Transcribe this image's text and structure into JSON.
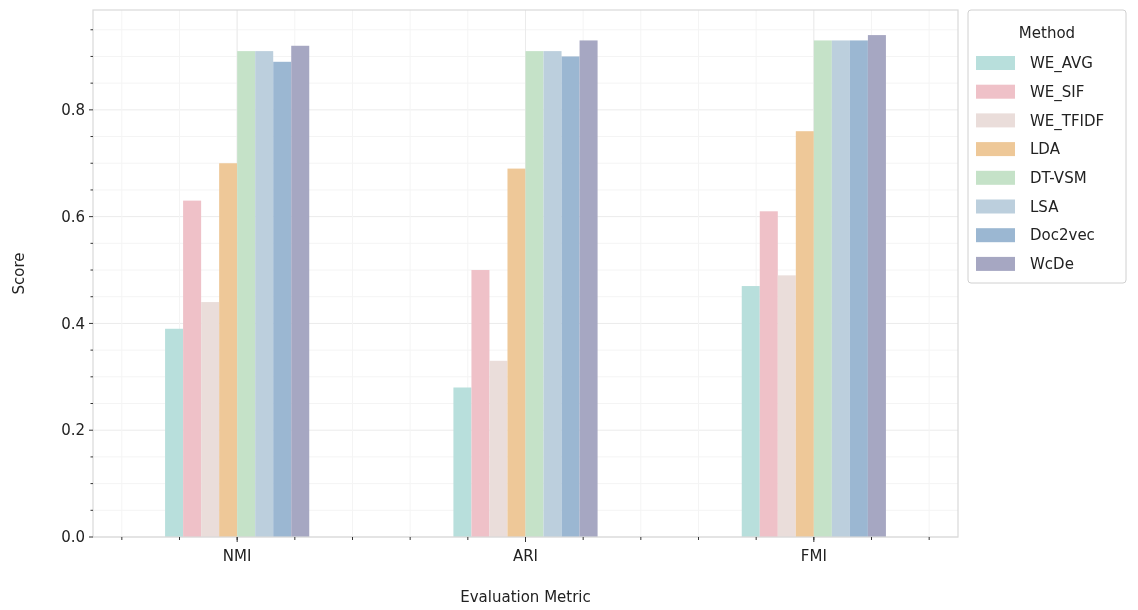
{
  "chart_data": {
    "type": "bar",
    "xlabel": "Evaluation Metric",
    "ylabel": "Score",
    "legend_title": "Method",
    "categories": [
      "NMI",
      "ARI",
      "FMI"
    ],
    "series": [
      {
        "name": "WE_AVG",
        "color": "#b8dfdc",
        "values": [
          0.39,
          0.28,
          0.47
        ]
      },
      {
        "name": "WE_SIF",
        "color": "#efc1c8",
        "values": [
          0.63,
          0.5,
          0.61
        ]
      },
      {
        "name": "WE_TFIDF",
        "color": "#eaddda",
        "values": [
          0.44,
          0.33,
          0.49
        ]
      },
      {
        "name": "LDA",
        "color": "#eec898",
        "values": [
          0.7,
          0.69,
          0.76
        ]
      },
      {
        "name": "DT-VSM",
        "color": "#c5e2c8",
        "values": [
          0.91,
          0.91,
          0.93
        ]
      },
      {
        "name": "LSA",
        "color": "#bccfdd",
        "values": [
          0.91,
          0.91,
          0.93
        ]
      },
      {
        "name": "Doc2vec",
        "color": "#9bb7d2",
        "values": [
          0.89,
          0.9,
          0.93
        ]
      },
      {
        "name": "WcDe",
        "color": "#a6a7c2",
        "values": [
          0.92,
          0.93,
          0.94
        ]
      }
    ],
    "ylim": [
      0,
      0.987
    ],
    "yticks": [
      {
        "value": 0,
        "label": "0.0"
      },
      {
        "value": 0.05,
        "label": null
      },
      {
        "value": 0.1,
        "label": null
      },
      {
        "value": 0.15,
        "label": null
      },
      {
        "value": 0.2,
        "label": "0.2"
      },
      {
        "value": 0.25,
        "label": null
      },
      {
        "value": 0.3,
        "label": null
      },
      {
        "value": 0.35,
        "label": null
      },
      {
        "value": 0.4,
        "label": "0.4"
      },
      {
        "value": 0.45,
        "label": null
      },
      {
        "value": 0.5,
        "label": null
      },
      {
        "value": 0.55,
        "label": null
      },
      {
        "value": 0.6,
        "label": "0.6"
      },
      {
        "value": 0.65,
        "label": null
      },
      {
        "value": 0.7,
        "label": null
      },
      {
        "value": 0.75,
        "label": null
      },
      {
        "value": 0.8,
        "label": "0.8"
      },
      {
        "value": 0.85,
        "label": null
      },
      {
        "value": 0.9,
        "label": null
      },
      {
        "value": 0.95,
        "label": null
      }
    ],
    "grid": true,
    "legend": "top right"
  }
}
